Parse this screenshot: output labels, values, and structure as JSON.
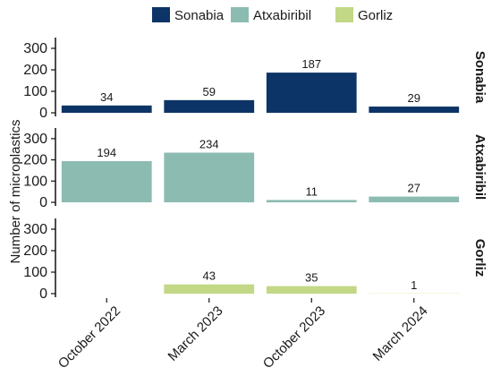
{
  "chart_data": {
    "type": "bar",
    "layout": "facet-rows",
    "title": "",
    "ylabel": "Number of microplastics",
    "xlabel": "",
    "categories": [
      "October 2022",
      "March 2023",
      "October 2023",
      "March 2024"
    ],
    "ylim": [
      0,
      350
    ],
    "yticks": [
      0,
      100,
      200,
      300
    ],
    "grid": false,
    "legend_position": "top",
    "series": [
      {
        "name": "Sonabia",
        "color": "#0d3466",
        "values": [
          34,
          59,
          187,
          29
        ]
      },
      {
        "name": "Atxabiribil",
        "color": "#8cbbb2",
        "values": [
          194,
          234,
          11,
          27
        ]
      },
      {
        "name": "Gorliz",
        "color": "#c2d886",
        "values": [
          null,
          43,
          35,
          1
        ]
      }
    ]
  }
}
